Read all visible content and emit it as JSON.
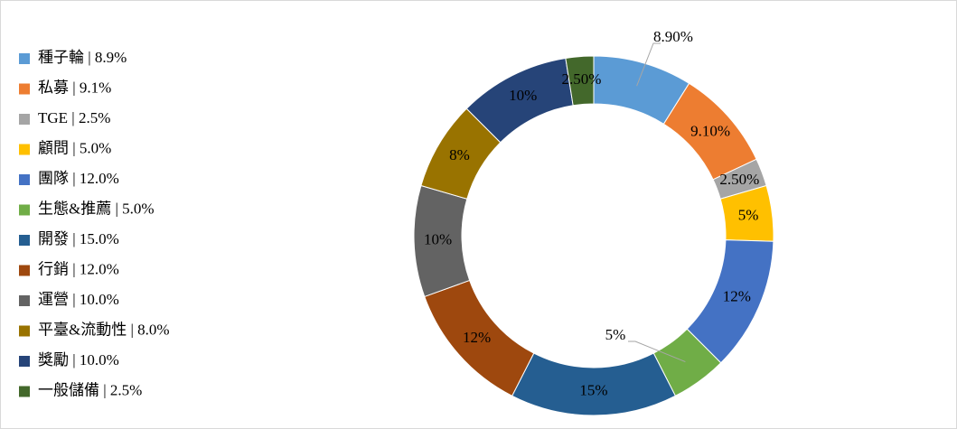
{
  "chart_data": {
    "type": "pie",
    "donut": true,
    "categories": [
      "種子輪 | 8.9%",
      "私募 | 9.1%",
      "TGE | 2.5%",
      "顧問 | 5.0%",
      "團隊 | 12.0%",
      "生態&推薦 | 5.0%",
      "開發 | 15.0%",
      "行銷 | 12.0%",
      "運營 | 10.0%",
      "平臺&流動性 | 8.0%",
      "獎勵 | 10.0%",
      "一般儲備 | 2.5%"
    ],
    "values": [
      8.9,
      9.1,
      2.5,
      5.0,
      12.0,
      5.0,
      15.0,
      12.0,
      10.0,
      8.0,
      10.0,
      2.5
    ],
    "value_labels": [
      "8.90%",
      "9.10%",
      "2.50%",
      "5%",
      "12%",
      "5%",
      "15%",
      "12%",
      "10%",
      "8%",
      "10%",
      "2.50%"
    ],
    "colors": [
      "#5b9bd5",
      "#ed7d31",
      "#a5a5a5",
      "#ffc000",
      "#4472c4",
      "#70ad47",
      "#255e91",
      "#9e480e",
      "#636363",
      "#997300",
      "#264478",
      "#43682b"
    ],
    "legend": "left"
  }
}
